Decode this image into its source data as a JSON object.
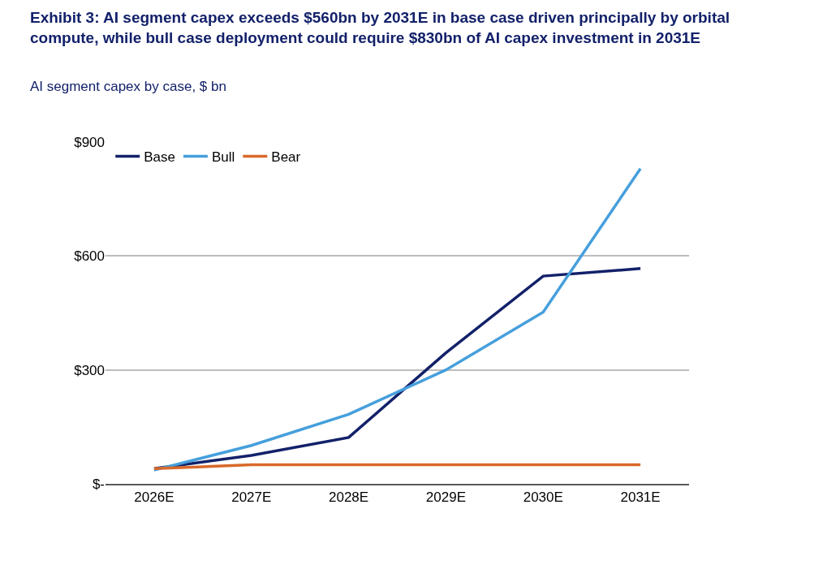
{
  "chart_data": {
    "type": "line",
    "title": "Exhibit 3: AI segment capex exceeds $560bn by 2031E in base case driven principally by orbital compute, while bull case deployment could require $830bn of AI capex investment in 2031E",
    "subtitle": "AI segment capex by case, $ bn",
    "categories": [
      "2026E",
      "2027E",
      "2028E",
      "2029E",
      "2030E",
      "2031E"
    ],
    "series": [
      {
        "name": "Base",
        "color": "#13216a",
        "values": [
          40,
          75,
          122,
          345,
          547,
          567
        ]
      },
      {
        "name": "Bull",
        "color": "#469fdc",
        "values": [
          36,
          101,
          183,
          300,
          452,
          830
        ]
      },
      {
        "name": "Bear",
        "color": "#d9692a",
        "values": [
          40,
          50,
          50,
          50,
          50,
          50
        ]
      }
    ],
    "ylim": [
      0,
      900
    ],
    "yticks": [
      {
        "value": 0,
        "label": "$-"
      },
      {
        "value": 300,
        "label": "$300"
      },
      {
        "value": 600,
        "label": "$600"
      },
      {
        "value": 900,
        "label": "$900"
      }
    ],
    "grid": "y",
    "legend": "top left",
    "marker": "none",
    "line_style": "solid"
  }
}
